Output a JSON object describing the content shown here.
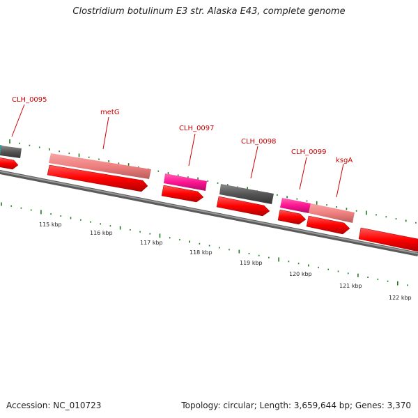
{
  "title": "Clostridium botulinum E3 str. Alaska E43, complete genome",
  "footer": {
    "accession": "Accession: NC_010723",
    "info": "Topology: circular; Length: 3,659,644 bp; Genes: 3,370"
  },
  "colors": {
    "cds_arrow": "#ff0000",
    "gene_gray": "#555555",
    "gene_pink": "#f08080",
    "gene_magenta": "#ff1493",
    "gene_teal": "#2aa198",
    "gc_tick": "#1e7a1e",
    "label": "#cc0000",
    "backbone": "#7a7a7a"
  },
  "scale": {
    "labels": [
      "115 kbp",
      "116 kbp",
      "117 kbp",
      "118 kbp",
      "119 kbp",
      "120 kbp",
      "121 kbp",
      "122 kbp"
    ]
  },
  "gene_labels": [
    {
      "name": "clh0095-label",
      "text": "CLH_0095"
    },
    {
      "name": "metg-label",
      "text": "metG"
    },
    {
      "name": "clh0097-label",
      "text": "CLH_0097"
    },
    {
      "name": "clh0098-label",
      "text": "CLH_0098"
    },
    {
      "name": "clh0099-label",
      "text": "CLH_0099"
    },
    {
      "name": "ksga-label",
      "text": "ksgA"
    }
  ]
}
